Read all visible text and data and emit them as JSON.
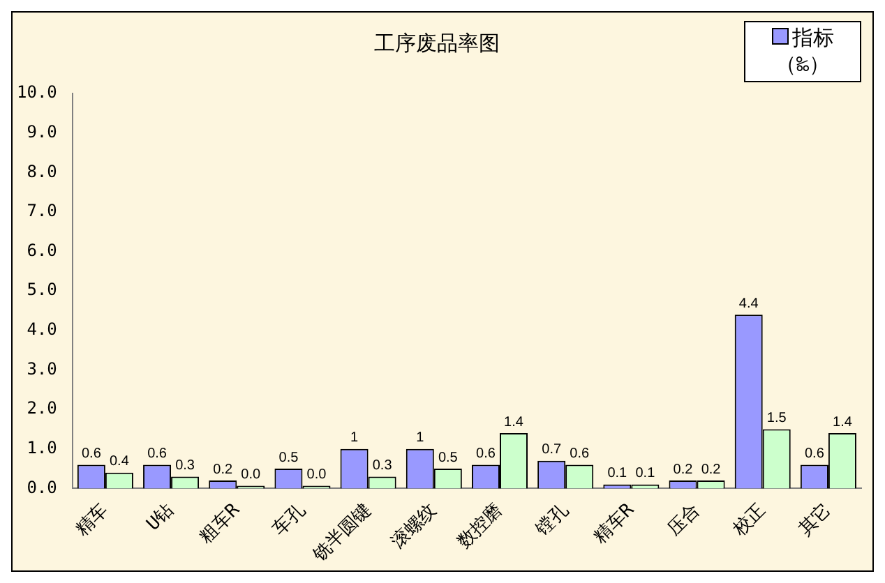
{
  "chart_data": {
    "type": "bar",
    "title": "工序废品率图",
    "categories": [
      "精车",
      "U钻",
      "粗车R",
      "车孔",
      "铣半圆键",
      "滚螺纹",
      "数控磨",
      "镗孔",
      "精车R",
      "压合",
      "校正",
      "其它"
    ],
    "series": [
      {
        "name": "指标（‰）",
        "color": "#9999ff",
        "values": [
          0.6,
          0.6,
          0.2,
          0.5,
          1,
          1,
          0.6,
          0.7,
          0.1,
          0.2,
          4.4,
          0.6
        ],
        "value_labels": [
          "0.6",
          "0.6",
          "0.2",
          "0.5",
          "1",
          "1",
          "0.6",
          "0.7",
          "0.1",
          "0.2",
          "4.4",
          "0.6"
        ]
      },
      {
        "color": "#ccffcc",
        "values": [
          0.4,
          0.3,
          0.0,
          0.0,
          0.3,
          0.5,
          1.4,
          0.6,
          0.1,
          0.2,
          1.5,
          1.4
        ],
        "value_labels": [
          "0.4",
          "0.3",
          "0.0",
          "0.0",
          "0.3",
          "0.5",
          "1.4",
          "0.6",
          "0.1",
          "0.2",
          "1.5",
          "1.4"
        ]
      }
    ],
    "ylim": [
      0,
      10
    ],
    "yticks": [
      {
        "value": 0,
        "label": "0.0"
      },
      {
        "value": 1,
        "label": "1.0"
      },
      {
        "value": 2,
        "label": "2.0"
      },
      {
        "value": 3,
        "label": "3.0"
      },
      {
        "value": 4,
        "label": "4.0"
      },
      {
        "value": 5,
        "label": "5.0"
      },
      {
        "value": 6,
        "label": "6.0"
      },
      {
        "value": 7,
        "label": "7.0"
      },
      {
        "value": 8,
        "label": "8.0"
      },
      {
        "value": 9,
        "label": "9.0"
      },
      {
        "value": 10,
        "label": "10.0"
      }
    ],
    "grid": false,
    "legend": "top right"
  }
}
